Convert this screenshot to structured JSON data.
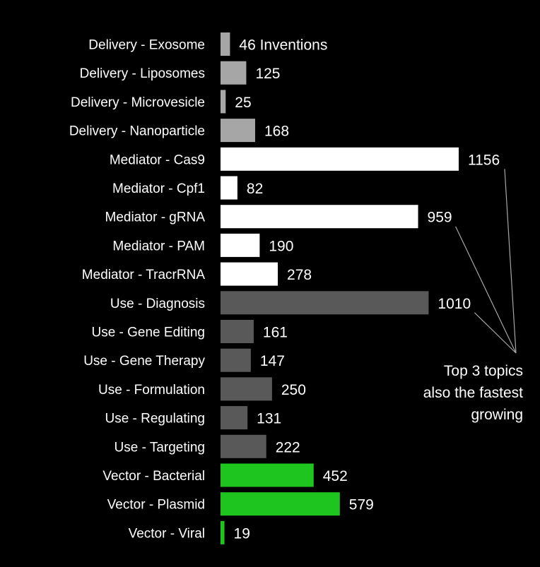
{
  "chart_data": {
    "type": "bar",
    "orientation": "horizontal",
    "background": "#000000",
    "title": "",
    "xlabel": "",
    "ylabel": "",
    "grid": false,
    "legend": "none",
    "value_unit_label": "Inventions",
    "categories": [
      "Delivery - Exosome",
      "Delivery - Liposomes",
      "Delivery - Microvesicle",
      "Delivery - Nanoparticle",
      "Mediator - Cas9",
      "Mediator - Cpf1",
      "Mediator - gRNA",
      "Mediator - PAM",
      "Mediator - TracrRNA",
      "Use - Diagnosis",
      "Use - Gene Editing",
      "Use - Gene Therapy",
      "Use - Formulation",
      "Use - Regulating",
      "Use - Targeting",
      "Vector - Bacterial",
      "Vector - Plasmid",
      "Vector - Viral"
    ],
    "values": [
      46,
      125,
      25,
      168,
      1156,
      82,
      959,
      190,
      278,
      1010,
      161,
      147,
      250,
      131,
      222,
      452,
      579,
      19
    ],
    "groups": [
      "Delivery",
      "Delivery",
      "Delivery",
      "Delivery",
      "Mediator",
      "Mediator",
      "Mediator",
      "Mediator",
      "Mediator",
      "Use",
      "Use",
      "Use",
      "Use",
      "Use",
      "Use",
      "Vector",
      "Vector",
      "Vector"
    ],
    "group_colors": {
      "Delivery": "#a6a6a6",
      "Mediator": "#ffffff",
      "Use": "#595959",
      "Vector": "#1ec51e"
    },
    "data_labels": [
      "46 Inventions",
      "125",
      "25",
      "168",
      "1156",
      "82",
      "959",
      "190",
      "278",
      "1010",
      "161",
      "147",
      "250",
      "131",
      "222",
      "452",
      "579",
      "19"
    ],
    "annotation": {
      "lines": [
        "Top 3 topics",
        "also the fastest",
        "growing"
      ],
      "points_to": [
        "Mediator - Cas9",
        "Mediator - gRNA",
        "Use - Diagnosis"
      ],
      "line_color": "#a6a6a6"
    }
  }
}
